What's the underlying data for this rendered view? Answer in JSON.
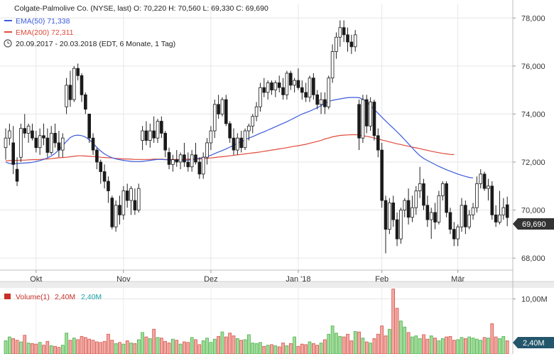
{
  "header": {
    "title_line": "Colgate-Palmolive Co. (NYSE, last)  O: 70,220  H: 70,560  L: 69,330  C: 69,690",
    "ema50_label": "EMA(50)  71,338",
    "ema200_label": "EMA(200)  72,311",
    "range_label": "20.09.2017 - 20.03.2018   (EDT, 6 Monate, 1 Tag)"
  },
  "colors": {
    "up": "#2aa02a",
    "down": "#c8302a",
    "ema50": "#3b5bdb",
    "ema200": "#e04a3a",
    "vol_up_fill": "#9fdc98",
    "vol_down_fill": "#f3a8a0",
    "vol_legend_value2": "#1aa0a8",
    "price_box": "#333333",
    "vol_box": "#24566b"
  },
  "chart_data": {
    "type": "candlestick",
    "price_axis": {
      "ylim": [
        67.5,
        78.6
      ],
      "ticks": [
        "68,000",
        "70,000",
        "72,000",
        "74,000",
        "76,000",
        "78,000"
      ],
      "tick_values": [
        68,
        70,
        72,
        74,
        76,
        78
      ]
    },
    "x_ticks": [
      "Okt",
      "Nov",
      "Dez",
      "Jan '18",
      "Feb",
      "Mär"
    ],
    "x_tick_index": [
      8,
      31,
      54,
      77,
      99,
      119
    ],
    "last_price_label": "69,690",
    "volume_axis": {
      "ylim": [
        0,
        12
      ],
      "ticks": [
        "10,00M"
      ],
      "tick_values": [
        10
      ]
    },
    "volume_legend": {
      "name": "Volume(1)",
      "value1": "2,40M",
      "value2": "2,40M"
    },
    "last_volume_label": "2,40M",
    "grid": true,
    "candles": [
      {
        "o": 72.6,
        "h": 73.4,
        "l": 72.1,
        "c": 73.0
      },
      {
        "o": 73.0,
        "h": 73.6,
        "l": 72.7,
        "c": 73.3
      },
      {
        "o": 72.8,
        "h": 73.5,
        "l": 71.5,
        "c": 71.9
      },
      {
        "o": 71.7,
        "h": 72.2,
        "l": 71.0,
        "c": 71.2
      },
      {
        "o": 72.2,
        "h": 73.6,
        "l": 72.0,
        "c": 73.4
      },
      {
        "o": 73.4,
        "h": 74.0,
        "l": 73.0,
        "c": 73.2
      },
      {
        "o": 73.2,
        "h": 73.6,
        "l": 72.8,
        "c": 73.5
      },
      {
        "o": 73.3,
        "h": 73.6,
        "l": 72.9,
        "c": 73.0
      },
      {
        "o": 73.0,
        "h": 73.3,
        "l": 72.4,
        "c": 72.6
      },
      {
        "o": 72.6,
        "h": 73.4,
        "l": 72.3,
        "c": 73.1
      },
      {
        "o": 73.1,
        "h": 73.6,
        "l": 72.7,
        "c": 73.0
      },
      {
        "o": 73.0,
        "h": 73.4,
        "l": 72.2,
        "c": 72.4
      },
      {
        "o": 72.4,
        "h": 73.5,
        "l": 72.3,
        "c": 73.2
      },
      {
        "o": 73.2,
        "h": 73.6,
        "l": 72.6,
        "c": 72.8
      },
      {
        "o": 72.8,
        "h": 73.3,
        "l": 72.2,
        "c": 72.5
      },
      {
        "o": 72.5,
        "h": 73.2,
        "l": 72.2,
        "c": 73.0
      },
      {
        "o": 74.3,
        "h": 75.5,
        "l": 74.0,
        "c": 75.2
      },
      {
        "o": 75.2,
        "h": 75.8,
        "l": 74.3,
        "c": 74.6
      },
      {
        "o": 74.6,
        "h": 76.0,
        "l": 74.5,
        "c": 75.9
      },
      {
        "o": 75.9,
        "h": 76.1,
        "l": 75.4,
        "c": 75.6
      },
      {
        "o": 75.6,
        "h": 75.7,
        "l": 74.5,
        "c": 74.8
      },
      {
        "o": 74.8,
        "h": 74.9,
        "l": 74.0,
        "c": 74.2
      },
      {
        "o": 74.0,
        "h": 74.0,
        "l": 72.8,
        "c": 73.0
      },
      {
        "o": 73.0,
        "h": 73.2,
        "l": 72.3,
        "c": 72.5
      },
      {
        "o": 72.5,
        "h": 72.6,
        "l": 71.7,
        "c": 72.0
      },
      {
        "o": 72.0,
        "h": 72.1,
        "l": 71.1,
        "c": 71.6
      },
      {
        "o": 71.6,
        "h": 71.9,
        "l": 70.9,
        "c": 71.2
      },
      {
        "o": 71.2,
        "h": 71.4,
        "l": 70.3,
        "c": 70.8
      },
      {
        "o": 70.5,
        "h": 70.6,
        "l": 69.2,
        "c": 69.3
      },
      {
        "o": 69.3,
        "h": 70.4,
        "l": 69.1,
        "c": 70.2
      },
      {
        "o": 70.2,
        "h": 70.6,
        "l": 69.4,
        "c": 69.8
      },
      {
        "o": 69.8,
        "h": 71.0,
        "l": 69.6,
        "c": 70.8
      },
      {
        "o": 70.8,
        "h": 71.1,
        "l": 70.1,
        "c": 70.4
      },
      {
        "o": 70.4,
        "h": 71.0,
        "l": 69.8,
        "c": 70.9
      },
      {
        "o": 70.4,
        "h": 70.9,
        "l": 69.8,
        "c": 70.0
      },
      {
        "o": 70.0,
        "h": 71.1,
        "l": 69.9,
        "c": 70.9
      },
      {
        "o": 72.9,
        "h": 73.5,
        "l": 72.5,
        "c": 73.3
      },
      {
        "o": 73.3,
        "h": 73.7,
        "l": 72.7,
        "c": 72.9
      },
      {
        "o": 72.9,
        "h": 73.6,
        "l": 72.6,
        "c": 73.3
      },
      {
        "o": 73.3,
        "h": 73.9,
        "l": 72.8,
        "c": 73.0
      },
      {
        "o": 73.0,
        "h": 73.8,
        "l": 72.8,
        "c": 73.7
      },
      {
        "o": 73.7,
        "h": 73.9,
        "l": 73.0,
        "c": 73.2
      },
      {
        "o": 73.2,
        "h": 73.3,
        "l": 72.2,
        "c": 72.5
      },
      {
        "o": 72.4,
        "h": 72.6,
        "l": 71.7,
        "c": 71.9
      },
      {
        "o": 71.9,
        "h": 72.3,
        "l": 71.6,
        "c": 72.1
      },
      {
        "o": 72.1,
        "h": 72.5,
        "l": 71.8,
        "c": 72.0
      },
      {
        "o": 72.0,
        "h": 72.4,
        "l": 71.7,
        "c": 72.3
      },
      {
        "o": 72.3,
        "h": 72.8,
        "l": 71.8,
        "c": 72.0
      },
      {
        "o": 72.0,
        "h": 72.4,
        "l": 71.6,
        "c": 71.8
      },
      {
        "o": 71.8,
        "h": 72.5,
        "l": 71.6,
        "c": 72.3
      },
      {
        "o": 72.3,
        "h": 72.8,
        "l": 71.9,
        "c": 72.0
      },
      {
        "o": 72.0,
        "h": 72.2,
        "l": 71.3,
        "c": 71.5
      },
      {
        "o": 71.5,
        "h": 72.4,
        "l": 71.3,
        "c": 72.2
      },
      {
        "o": 72.2,
        "h": 73.0,
        "l": 71.9,
        "c": 72.8
      },
      {
        "o": 72.8,
        "h": 73.5,
        "l": 72.5,
        "c": 73.3
      },
      {
        "o": 73.3,
        "h": 74.6,
        "l": 73.0,
        "c": 74.4
      },
      {
        "o": 74.4,
        "h": 74.8,
        "l": 73.8,
        "c": 74.0
      },
      {
        "o": 74.0,
        "h": 74.7,
        "l": 73.9,
        "c": 74.6
      },
      {
        "o": 74.6,
        "h": 74.8,
        "l": 73.5,
        "c": 73.6
      },
      {
        "o": 73.6,
        "h": 73.7,
        "l": 72.8,
        "c": 73.0
      },
      {
        "o": 73.0,
        "h": 73.4,
        "l": 72.3,
        "c": 72.5
      },
      {
        "o": 72.5,
        "h": 73.2,
        "l": 72.3,
        "c": 73.0
      },
      {
        "o": 73.0,
        "h": 73.3,
        "l": 72.4,
        "c": 72.6
      },
      {
        "o": 72.6,
        "h": 73.4,
        "l": 72.5,
        "c": 73.3
      },
      {
        "o": 73.3,
        "h": 73.6,
        "l": 72.9,
        "c": 73.5
      },
      {
        "o": 73.5,
        "h": 74.0,
        "l": 73.2,
        "c": 73.9
      },
      {
        "o": 73.9,
        "h": 74.5,
        "l": 73.7,
        "c": 74.3
      },
      {
        "o": 74.3,
        "h": 75.3,
        "l": 74.1,
        "c": 75.1
      },
      {
        "o": 75.1,
        "h": 75.5,
        "l": 74.7,
        "c": 74.9
      },
      {
        "o": 74.9,
        "h": 75.4,
        "l": 74.6,
        "c": 75.3
      },
      {
        "o": 75.3,
        "h": 75.4,
        "l": 74.8,
        "c": 75.0
      },
      {
        "o": 75.0,
        "h": 75.4,
        "l": 74.7,
        "c": 75.3
      },
      {
        "o": 75.3,
        "h": 75.6,
        "l": 74.9,
        "c": 75.1
      },
      {
        "o": 75.1,
        "h": 75.5,
        "l": 74.6,
        "c": 74.8
      },
      {
        "o": 74.8,
        "h": 75.8,
        "l": 74.6,
        "c": 75.7
      },
      {
        "o": 75.7,
        "h": 75.8,
        "l": 75.0,
        "c": 75.2
      },
      {
        "o": 75.2,
        "h": 75.5,
        "l": 74.9,
        "c": 75.4
      },
      {
        "o": 75.4,
        "h": 75.9,
        "l": 75.0,
        "c": 75.1
      },
      {
        "o": 75.1,
        "h": 75.4,
        "l": 74.6,
        "c": 74.9
      },
      {
        "o": 74.9,
        "h": 75.3,
        "l": 74.5,
        "c": 74.7
      },
      {
        "o": 74.7,
        "h": 75.6,
        "l": 74.5,
        "c": 75.5
      },
      {
        "o": 75.5,
        "h": 75.7,
        "l": 74.6,
        "c": 74.8
      },
      {
        "o": 74.8,
        "h": 75.0,
        "l": 74.2,
        "c": 74.4
      },
      {
        "o": 74.4,
        "h": 74.9,
        "l": 74.0,
        "c": 74.6
      },
      {
        "o": 74.6,
        "h": 74.9,
        "l": 74.0,
        "c": 74.3
      },
      {
        "o": 74.3,
        "h": 75.6,
        "l": 74.2,
        "c": 75.5
      },
      {
        "o": 75.5,
        "h": 76.9,
        "l": 75.3,
        "c": 76.6
      },
      {
        "o": 76.6,
        "h": 77.4,
        "l": 76.3,
        "c": 77.2
      },
      {
        "o": 77.2,
        "h": 77.9,
        "l": 76.8,
        "c": 77.6
      },
      {
        "o": 77.6,
        "h": 77.9,
        "l": 77.0,
        "c": 77.3
      },
      {
        "o": 77.3,
        "h": 77.6,
        "l": 76.6,
        "c": 77.0
      },
      {
        "o": 77.0,
        "h": 77.3,
        "l": 76.5,
        "c": 76.8
      },
      {
        "o": 76.8,
        "h": 77.5,
        "l": 76.6,
        "c": 77.3
      },
      {
        "o": 74.4,
        "h": 74.6,
        "l": 72.5,
        "c": 73.0
      },
      {
        "o": 73.0,
        "h": 74.8,
        "l": 72.8,
        "c": 74.6
      },
      {
        "o": 74.6,
        "h": 74.8,
        "l": 73.2,
        "c": 73.5
      },
      {
        "o": 73.5,
        "h": 74.7,
        "l": 73.3,
        "c": 74.5
      },
      {
        "o": 74.5,
        "h": 74.6,
        "l": 72.9,
        "c": 73.1
      },
      {
        "o": 73.1,
        "h": 73.4,
        "l": 72.2,
        "c": 72.5
      },
      {
        "o": 72.5,
        "h": 72.8,
        "l": 70.1,
        "c": 70.4
      },
      {
        "o": 70.4,
        "h": 70.6,
        "l": 68.2,
        "c": 69.2
      },
      {
        "o": 69.2,
        "h": 70.5,
        "l": 69.0,
        "c": 70.3
      },
      {
        "o": 70.3,
        "h": 70.6,
        "l": 69.3,
        "c": 69.6
      },
      {
        "o": 69.6,
        "h": 69.9,
        "l": 68.5,
        "c": 68.8
      },
      {
        "o": 68.8,
        "h": 70.1,
        "l": 68.6,
        "c": 70.0
      },
      {
        "o": 70.0,
        "h": 70.5,
        "l": 69.7,
        "c": 70.4
      },
      {
        "o": 70.4,
        "h": 70.9,
        "l": 69.4,
        "c": 69.7
      },
      {
        "o": 69.7,
        "h": 70.6,
        "l": 69.5,
        "c": 70.1
      },
      {
        "o": 70.1,
        "h": 71.0,
        "l": 69.8,
        "c": 70.8
      },
      {
        "o": 70.8,
        "h": 71.8,
        "l": 70.5,
        "c": 71.1
      },
      {
        "o": 71.1,
        "h": 71.3,
        "l": 70.0,
        "c": 70.2
      },
      {
        "o": 70.2,
        "h": 70.6,
        "l": 69.3,
        "c": 69.6
      },
      {
        "o": 69.6,
        "h": 70.1,
        "l": 68.8,
        "c": 69.9
      },
      {
        "o": 69.9,
        "h": 70.3,
        "l": 69.2,
        "c": 69.5
      },
      {
        "o": 69.5,
        "h": 70.8,
        "l": 69.4,
        "c": 70.6
      },
      {
        "o": 70.6,
        "h": 71.2,
        "l": 70.4,
        "c": 71.1
      },
      {
        "o": 71.1,
        "h": 71.2,
        "l": 69.7,
        "c": 69.9
      },
      {
        "o": 69.9,
        "h": 70.1,
        "l": 69.0,
        "c": 69.2
      },
      {
        "o": 69.2,
        "h": 69.5,
        "l": 68.5,
        "c": 68.8
      },
      {
        "o": 68.8,
        "h": 69.4,
        "l": 68.5,
        "c": 69.3
      },
      {
        "o": 69.3,
        "h": 70.5,
        "l": 69.1,
        "c": 70.2
      },
      {
        "o": 70.2,
        "h": 70.4,
        "l": 69.0,
        "c": 69.3
      },
      {
        "o": 69.3,
        "h": 70.0,
        "l": 69.2,
        "c": 69.8
      },
      {
        "o": 69.8,
        "h": 70.3,
        "l": 69.6,
        "c": 70.1
      },
      {
        "o": 70.1,
        "h": 71.4,
        "l": 69.9,
        "c": 71.1
      },
      {
        "o": 71.1,
        "h": 71.7,
        "l": 70.9,
        "c": 71.5
      },
      {
        "o": 71.5,
        "h": 71.6,
        "l": 70.8,
        "c": 70.9
      },
      {
        "o": 70.9,
        "h": 71.3,
        "l": 70.4,
        "c": 71.0
      },
      {
        "o": 71.0,
        "h": 71.2,
        "l": 69.6,
        "c": 69.8
      },
      {
        "o": 69.8,
        "h": 70.2,
        "l": 69.3,
        "c": 69.5
      },
      {
        "o": 69.5,
        "h": 70.8,
        "l": 69.4,
        "c": 69.8
      },
      {
        "o": 69.8,
        "h": 70.5,
        "l": 69.6,
        "c": 70.1
      },
      {
        "o": 70.22,
        "h": 70.56,
        "l": 69.33,
        "c": 69.69
      }
    ],
    "volume": [
      2.4,
      3.1,
      2.8,
      2.5,
      2.2,
      3.4,
      2.0,
      1.9,
      1.8,
      2.1,
      1.6,
      2.3,
      1.5,
      1.4,
      1.2,
      1.6,
      3.8,
      2.5,
      2.9,
      2.6,
      3.2,
      3.0,
      2.7,
      2.5,
      2.2,
      2.1,
      2.3,
      3.6,
      2.5,
      1.9,
      2.1,
      1.8,
      2.4,
      2.0,
      1.9,
      2.6,
      3.9,
      3.1,
      2.8,
      4.5,
      3.0,
      2.9,
      2.3,
      2.0,
      2.7,
      2.5,
      1.8,
      2.2,
      2.1,
      3.0,
      2.6,
      1.7,
      2.4,
      2.9,
      2.1,
      2.7,
      3.2,
      4.0,
      3.1,
      3.8,
      3.3,
      2.8,
      2.5,
      2.6,
      3.5,
      2.0,
      1.9,
      2.1,
      1.4,
      1.6,
      1.7,
      1.5,
      1.3,
      2.0,
      1.5,
      1.9,
      3.1,
      1.4,
      1.8,
      1.7,
      2.2,
      1.9,
      1.6,
      2.0,
      2.6,
      3.6,
      5.1,
      3.8,
      3.2,
      3.1,
      3.6,
      2.4,
      4.1,
      4.0,
      2.9,
      2.2,
      2.0,
      2.8,
      3.6,
      5.1,
      3.3,
      4.5,
      11.8,
      8.3,
      6.0,
      4.9,
      3.9,
      3.1,
      3.3,
      2.8,
      3.5,
      2.7,
      3.3,
      2.9,
      2.4,
      2.8,
      3.1,
      3.2,
      2.5,
      2.6,
      3.0,
      2.8,
      3.1,
      2.9,
      2.7,
      2.5,
      3.0,
      2.9,
      5.5,
      3.1,
      2.8,
      3.2,
      2.4
    ],
    "ema50": [
      72.0,
      71.94,
      71.93,
      71.94,
      71.95,
      71.96,
      71.97,
      71.99,
      72.02,
      72.06,
      72.11,
      72.17,
      72.25,
      72.36,
      72.51,
      72.68,
      72.86,
      73.02,
      73.1,
      73.12,
      73.1,
      73.04,
      72.93,
      72.78,
      72.61,
      72.46,
      72.34,
      72.25,
      72.18,
      72.13,
      72.1,
      72.07,
      72.05,
      72.03,
      72.02,
      72.02,
      72.03,
      72.05,
      72.07,
      72.09,
      72.11,
      72.11,
      72.1,
      72.09,
      72.08,
      72.07,
      72.07,
      72.07,
      72.08,
      72.1,
      72.13,
      72.16,
      72.19,
      72.23,
      72.28,
      72.35,
      72.42,
      72.48,
      72.55,
      72.62,
      72.7,
      72.78,
      72.85,
      72.93,
      73.0,
      73.06,
      73.13,
      73.2,
      73.26,
      73.33,
      73.4,
      73.47,
      73.54,
      73.61,
      73.68,
      73.76,
      73.84,
      73.92,
      74.0,
      74.06,
      74.12,
      74.19,
      74.26,
      74.35,
      74.44,
      74.52,
      74.57,
      74.6,
      74.63,
      74.66,
      74.68,
      74.69,
      74.69,
      74.68,
      74.61,
      74.5,
      74.35,
      74.19,
      74.03,
      73.87,
      73.71,
      73.56,
      73.41,
      73.26,
      73.1,
      72.93,
      72.76,
      72.59,
      72.42,
      72.27,
      72.15,
      72.06,
      71.98,
      71.9,
      71.82,
      71.75,
      71.68,
      71.62,
      71.56,
      71.5,
      71.45,
      71.4,
      71.36,
      71.34
    ],
    "ema200": [
      72.05,
      72.06,
      72.07,
      72.07,
      72.08,
      72.08,
      72.09,
      72.1,
      72.1,
      72.11,
      72.12,
      72.13,
      72.14,
      72.16,
      72.18,
      72.19,
      72.2,
      72.22,
      72.24,
      72.26,
      72.26,
      72.25,
      72.24,
      72.23,
      72.22,
      72.2,
      72.19,
      72.18,
      72.17,
      72.15,
      72.14,
      72.13,
      72.13,
      72.12,
      72.11,
      72.11,
      72.11,
      72.11,
      72.11,
      72.12,
      72.12,
      72.12,
      72.11,
      72.11,
      72.11,
      72.11,
      72.11,
      72.11,
      72.12,
      72.12,
      72.13,
      72.13,
      72.14,
      72.16,
      72.17,
      72.19,
      72.21,
      72.22,
      72.24,
      72.26,
      72.28,
      72.3,
      72.32,
      72.34,
      72.36,
      72.38,
      72.4,
      72.42,
      72.45,
      72.47,
      72.5,
      72.52,
      72.55,
      72.57,
      72.6,
      72.63,
      72.66,
      72.68,
      72.71,
      72.74,
      72.78,
      72.82,
      72.86,
      72.9,
      72.96,
      73.0,
      73.05,
      73.08,
      73.11,
      73.12,
      73.13,
      73.14,
      73.14,
      73.13,
      73.1,
      73.07,
      73.04,
      73.0,
      72.96,
      72.92,
      72.88,
      72.84,
      72.8,
      72.76,
      72.73,
      72.69,
      72.66,
      72.62,
      72.59,
      72.56,
      72.52,
      72.49,
      72.45,
      72.42,
      72.39,
      72.36,
      72.34,
      72.32,
      72.31
    ]
  }
}
